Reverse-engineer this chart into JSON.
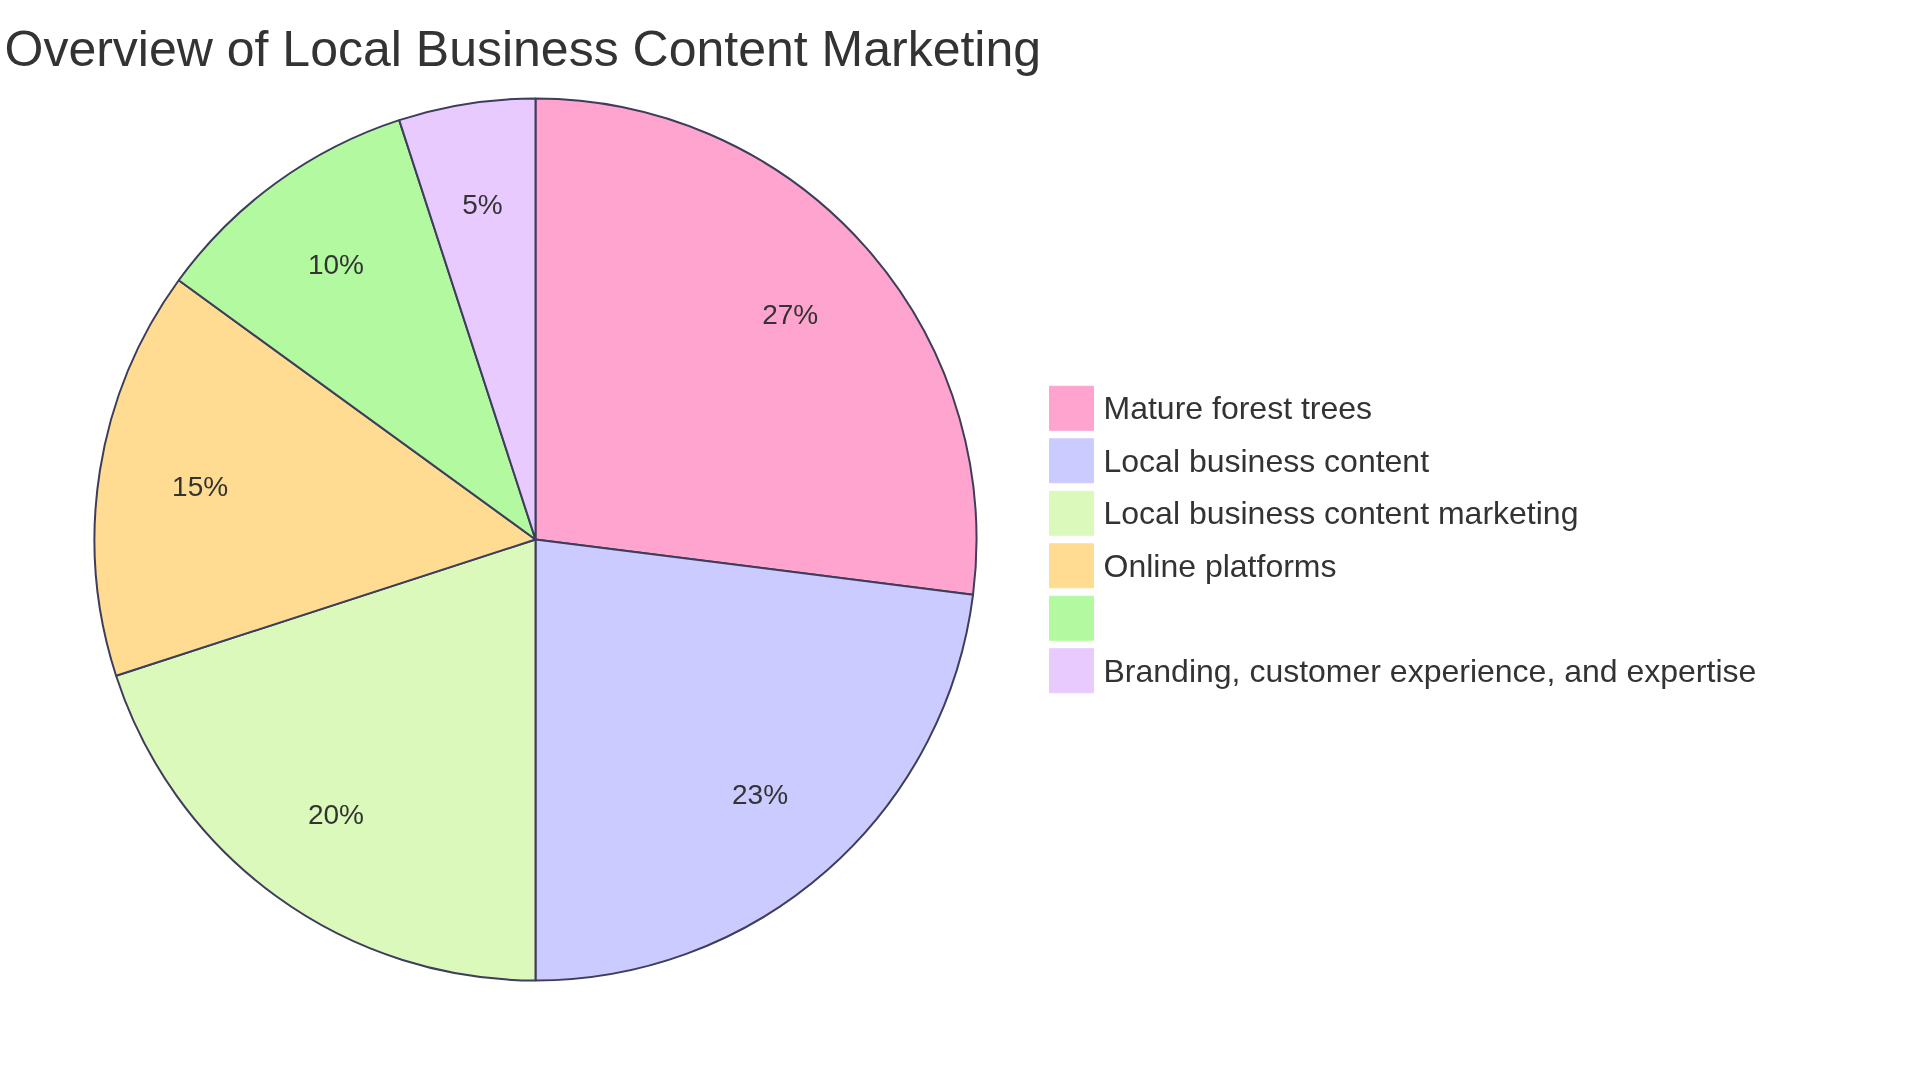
{
  "chart_data": {
    "type": "pie",
    "title": "Overview of Local Business Content Marketing",
    "categories": [
      "Mature forest trees",
      "Local business content",
      "Local business content marketing",
      "Online platforms",
      null,
      "Branding, customer experience, and expertise"
    ],
    "values": [
      27,
      23,
      20,
      15,
      10,
      5
    ],
    "value_labels": [
      "27%",
      "23%",
      "20%",
      "15%",
      "10%",
      "5%"
    ],
    "colors": [
      "#ffa3cf",
      "#cbcbff",
      "#dbf9bb",
      "#ffdc92",
      "#b3f9a0",
      "#e8caff"
    ],
    "legend": "right"
  }
}
